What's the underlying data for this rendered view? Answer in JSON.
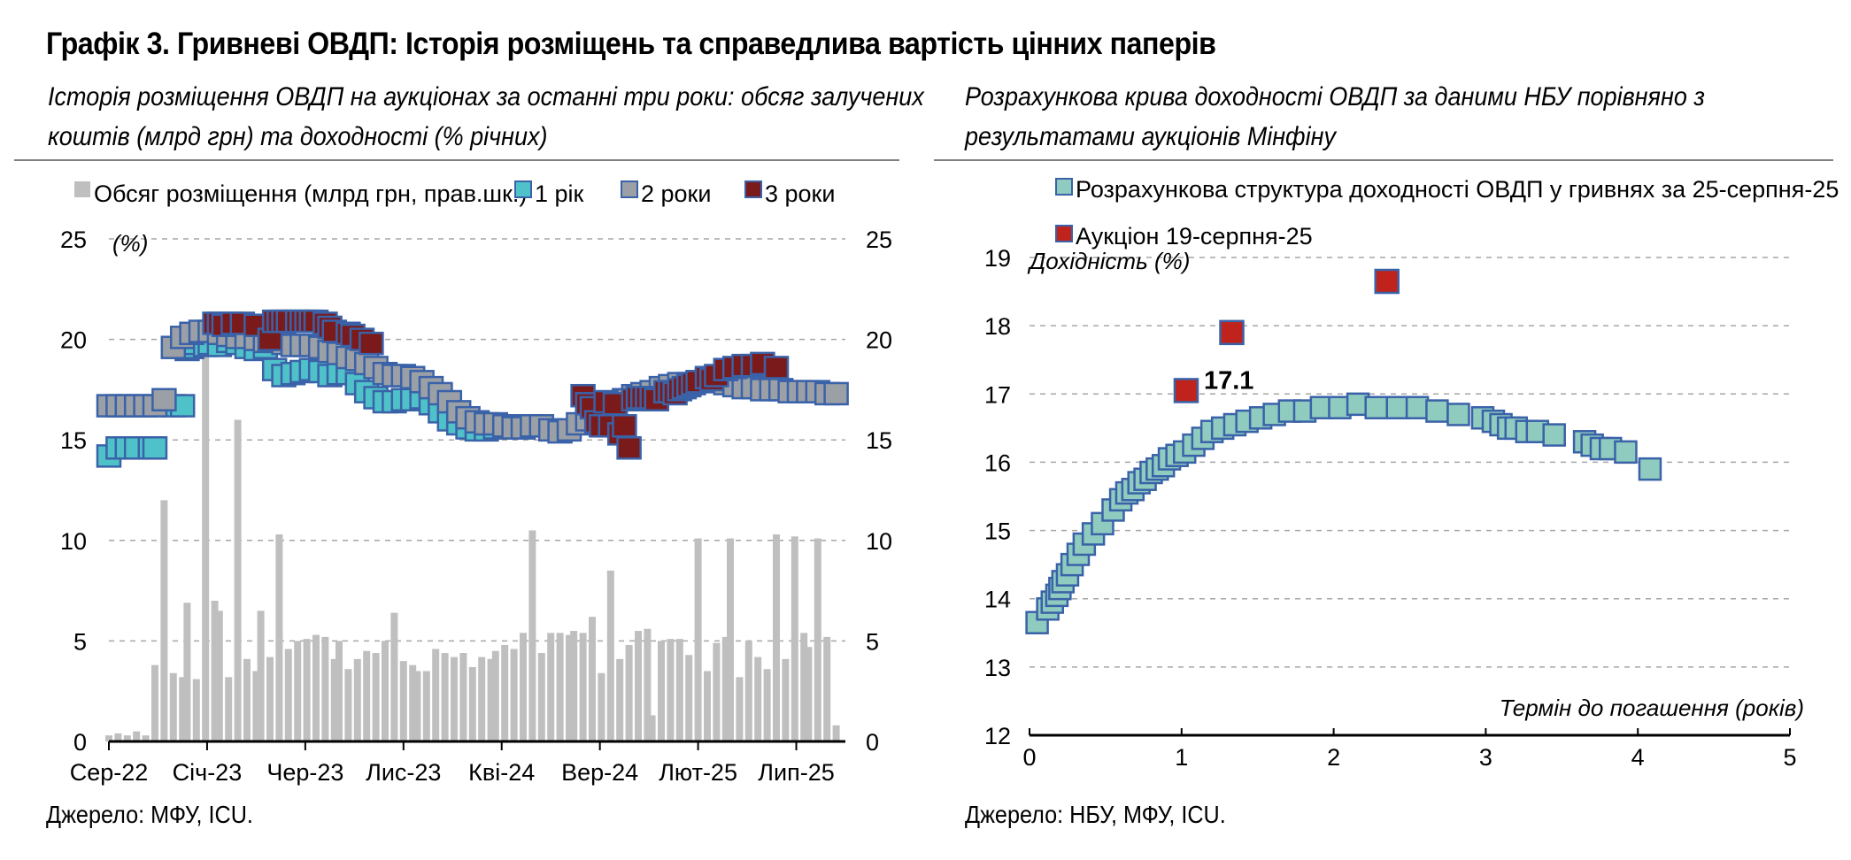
{
  "title": "Графік 3. Гривневі ОВДП: Історія розміщень та справедлива вартість цінних паперів",
  "subtitle_left": [
    "Історія розміщення ОВДП на аукціонах за останні три роки: обсяг залучених",
    "коштів (млрд грн) та доходності (% річних)"
  ],
  "subtitle_right": [
    "Розрахункова крива доходності ОВДП за даними НБУ порівняно з",
    "результатами аукціонів Мінфіну"
  ],
  "source_left": "Джерело: МФУ, ICU.",
  "source_right": "Джерело: НБУ, МФУ, ICU.",
  "colors": {
    "bar": "#bfbfbf",
    "y1": "#4fc1c9",
    "y2": "#9ba0a6",
    "y3": "#7b1a1a",
    "curve": "#8fcbbf",
    "auction": "#c0231c",
    "border": "#3a62a8"
  },
  "chart_data": [
    {
      "type": "bar+scatter",
      "legend": [
        "Обсяг розміщення (млрд грн, прав.шк.)",
        "1 рік",
        "2 роки",
        "3 роки"
      ],
      "yunit": "(%)",
      "ylim": [
        0,
        25
      ],
      "yticks": [
        0,
        5,
        10,
        15,
        20,
        25
      ],
      "y2lim": [
        0,
        25
      ],
      "y2ticks": [
        0,
        5,
        10,
        15,
        20,
        25
      ],
      "xticks": [
        "Сер-22",
        "Січ-23",
        "Чер-23",
        "Лис-23",
        "Кві-24",
        "Вер-24",
        "Лют-25",
        "Лип-25"
      ],
      "grid": true,
      "volume_series": {
        "name": "Обсяг розміщення (млрд грн, прав.шк.)",
        "t": [
          0,
          2,
          4,
          6,
          8,
          10,
          12,
          14,
          16,
          17,
          19,
          21,
          23,
          24,
          26,
          28,
          30,
          32,
          33,
          35,
          37,
          39,
          41,
          43,
          45,
          47,
          49,
          50,
          52,
          54,
          56,
          58,
          60,
          62,
          64,
          66,
          67,
          69,
          71,
          73,
          75,
          77,
          79,
          81,
          83,
          84,
          86,
          88,
          90,
          92,
          94,
          96,
          98,
          100,
          101,
          103,
          105,
          107,
          109,
          111,
          113,
          115,
          117,
          118,
          120,
          122,
          124,
          126,
          128,
          130,
          132,
          134,
          135,
          137,
          139,
          141,
          143,
          145,
          147,
          149,
          151,
          152,
          154,
          156,
          158
        ],
        "values": [
          0.3,
          0.4,
          0.3,
          0.5,
          0.3,
          3.8,
          12,
          3.4,
          3.2,
          6.9,
          3.1,
          20.5,
          7,
          6.5,
          3.2,
          16,
          4.1,
          3.5,
          6.5,
          4.2,
          10.3,
          4.6,
          5,
          5.1,
          5.3,
          5.2,
          4.1,
          5,
          3.6,
          4.1,
          4.5,
          4.4,
          5,
          6.4,
          4,
          3.8,
          3.5,
          3.5,
          4.6,
          4.4,
          4.2,
          4.4,
          3.7,
          4.2,
          4.1,
          4.5,
          4.8,
          4.6,
          5.4,
          10.5,
          4.4,
          5.4,
          5.4,
          5.3,
          5.5,
          5.4,
          6.2,
          3.4,
          8.5,
          4.1,
          4.8,
          5.5,
          5.6,
          1.3,
          5,
          5.1,
          5.1,
          4.3,
          10.1,
          3.5,
          4.9,
          5.2,
          10.1,
          3.2,
          5,
          4.2,
          3.6,
          10.3,
          4.1,
          10.2,
          5.4,
          4.7,
          10.1,
          5.2,
          0.8
        ]
      },
      "rate_series": [
        {
          "name": "1 рік",
          "t": [
            0,
            2,
            4,
            6,
            9,
            10,
            14,
            16,
            17,
            18,
            19,
            21,
            22,
            24,
            26,
            28,
            30,
            32,
            34,
            36,
            38,
            40,
            42,
            44,
            46,
            48,
            50,
            52,
            54,
            56,
            58,
            60,
            62,
            64,
            66,
            68,
            70,
            72,
            74,
            76,
            78,
            80,
            82,
            84,
            86,
            88,
            90
          ],
          "y": [
            14.2,
            14.6,
            14.6,
            14.6,
            14.6,
            14.6,
            16.7,
            16.7,
            19.5,
            19.6,
            19.8,
            19.7,
            19.8,
            19.7,
            19.9,
            19.8,
            19.6,
            19.5,
            19.6,
            18.5,
            18.2,
            18.3,
            18.4,
            18.5,
            18.4,
            18.2,
            18.3,
            18.3,
            17.8,
            17.4,
            17.1,
            16.9,
            16.9,
            17.0,
            17.0,
            17.1,
            16.8,
            16.4,
            16.0,
            15.8,
            15.6,
            15.5,
            15.5,
            15.6,
            15.6,
            15.7,
            15.6
          ]
        },
        {
          "name": "2 роки",
          "t": [
            0,
            2,
            4,
            6,
            8,
            10,
            12,
            14,
            16,
            18,
            20,
            22,
            24,
            26,
            28,
            30,
            32,
            34,
            36,
            38,
            40,
            42,
            44,
            46,
            48,
            50,
            52,
            54,
            56,
            58,
            60,
            62,
            64,
            66,
            68,
            70,
            72,
            74,
            76,
            78,
            80,
            82,
            84,
            86,
            88,
            90,
            92,
            94,
            96,
            98,
            100,
            102,
            104,
            106,
            108,
            110,
            112,
            114,
            116,
            118,
            120,
            122,
            124,
            126,
            128,
            130,
            132,
            134,
            136,
            138,
            140,
            142,
            144,
            146,
            148,
            150,
            152,
            154,
            156,
            158
          ],
          "y": [
            16.7,
            16.7,
            16.7,
            16.7,
            16.7,
            16.7,
            17.0,
            19.6,
            20.1,
            20.3,
            20.4,
            20.4,
            20.3,
            20.2,
            20.1,
            20.1,
            20.0,
            19.9,
            19.9,
            19.8,
            19.7,
            19.7,
            19.7,
            19.6,
            19.4,
            19.3,
            19.1,
            19.0,
            18.8,
            18.6,
            18.3,
            18.2,
            18.2,
            18.1,
            17.9,
            17.6,
            17.3,
            16.9,
            16.4,
            16.1,
            15.9,
            15.8,
            15.8,
            15.7,
            15.6,
            15.6,
            15.7,
            15.7,
            15.5,
            15.4,
            15.5,
            15.8,
            16.0,
            16.3,
            16.6,
            16.8,
            17.0,
            17.2,
            17.3,
            17.4,
            17.6,
            17.7,
            17.8,
            17.8,
            17.9,
            18.0,
            17.9,
            17.8,
            17.7,
            17.6,
            17.6,
            17.5,
            17.5,
            17.5,
            17.4,
            17.4,
            17.4,
            17.4,
            17.3,
            17.3
          ]
        },
        {
          "name": "3 роки",
          "t": [
            23,
            24,
            25,
            27,
            29,
            32,
            35,
            36,
            37,
            38,
            39,
            41,
            42,
            43,
            44,
            45,
            47,
            48,
            49,
            52,
            53,
            55,
            57,
            103,
            104,
            105,
            106,
            107,
            108,
            109,
            110,
            111,
            112,
            113,
            114,
            115,
            116,
            117,
            118,
            119,
            121,
            122,
            123,
            124,
            125,
            126,
            127,
            128,
            130,
            131,
            132,
            134,
            136,
            138,
            140,
            142,
            145
          ],
          "y": [
            20.8,
            20.8,
            20.7,
            20.8,
            20.8,
            20.7,
            20.0,
            20.9,
            20.9,
            20.9,
            20.9,
            20.9,
            20.9,
            20.9,
            20.9,
            20.9,
            20.8,
            20.6,
            20.4,
            20.3,
            20.2,
            20.0,
            19.8,
            17.2,
            16.8,
            16.6,
            15.9,
            15.7,
            16.9,
            15.7,
            16.8,
            15.3,
            15.7,
            14.6,
            17.0,
            17.1,
            17.1,
            17.1,
            17.1,
            17.0,
            17.4,
            17.4,
            17.3,
            17.5,
            17.6,
            17.7,
            17.8,
            17.9,
            18.1,
            18.0,
            18.2,
            18.5,
            18.6,
            18.7,
            18.7,
            18.8,
            18.6
          ]
        }
      ]
    },
    {
      "type": "scatter",
      "legend": [
        "Розрахункова структура доходності ОВДП у гривнях за 25-серпня-25",
        "Аукціон 19-серпня-25"
      ],
      "ylabel": "Дохідність (%)",
      "xlabel": "Термін до погашення (років)",
      "xlim": [
        0,
        5
      ],
      "ylim": [
        12,
        19
      ],
      "xticks": [
        0,
        1,
        2,
        3,
        4,
        5
      ],
      "yticks": [
        12,
        13,
        14,
        15,
        16,
        17,
        18,
        19
      ],
      "grid": true,
      "series": [
        {
          "name": "Розрахункова структура доходності ОВДП у гривнях за 25-серпня-25",
          "x": [
            0.05,
            0.12,
            0.15,
            0.18,
            0.2,
            0.22,
            0.25,
            0.28,
            0.32,
            0.36,
            0.42,
            0.48,
            0.55,
            0.6,
            0.64,
            0.68,
            0.72,
            0.76,
            0.8,
            0.84,
            0.88,
            0.92,
            0.97,
            1.02,
            1.08,
            1.14,
            1.2,
            1.27,
            1.35,
            1.43,
            1.52,
            1.61,
            1.71,
            1.81,
            1.92,
            2.04,
            2.16,
            2.28,
            2.42,
            2.55,
            2.68,
            2.82,
            2.98,
            3.05,
            3.1,
            3.15,
            3.2,
            3.27,
            3.34,
            3.45,
            3.65,
            3.7,
            3.76,
            3.82,
            3.92,
            4.08
          ],
          "y": [
            13.65,
            13.85,
            13.95,
            14.05,
            14.15,
            14.25,
            14.35,
            14.5,
            14.65,
            14.8,
            14.95,
            15.1,
            15.3,
            15.45,
            15.55,
            15.6,
            15.7,
            15.75,
            15.85,
            15.9,
            15.95,
            16.05,
            16.1,
            16.15,
            16.25,
            16.35,
            16.45,
            16.5,
            16.55,
            16.6,
            16.65,
            16.7,
            16.75,
            16.75,
            16.8,
            16.8,
            16.85,
            16.8,
            16.8,
            16.8,
            16.75,
            16.7,
            16.65,
            16.6,
            16.55,
            16.5,
            16.5,
            16.45,
            16.45,
            16.4,
            16.3,
            16.25,
            16.2,
            16.2,
            16.15,
            15.9
          ]
        },
        {
          "name": "Аукціон 19-серпня-25",
          "x": [
            1.03,
            1.33,
            2.35
          ],
          "y": [
            17.05,
            17.9,
            18.65
          ]
        }
      ],
      "annotation": "17.1"
    }
  ]
}
